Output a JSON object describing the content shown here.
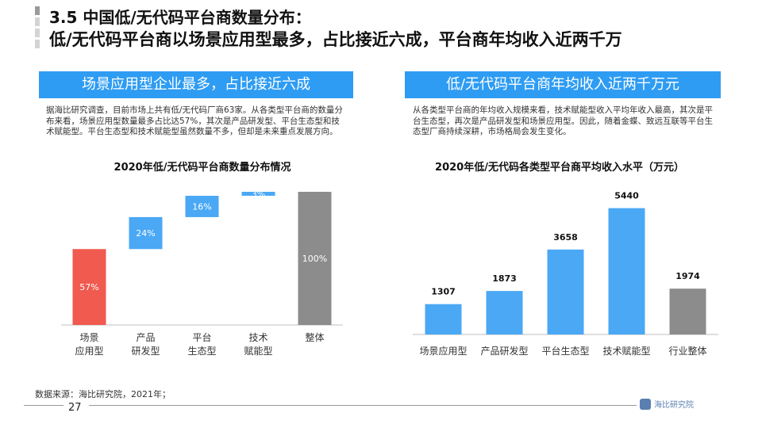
{
  "header": {
    "title_line1": "3.5 中国低/无代码平台商数量分布：",
    "title_line2": "低/无代码平台商以场景应用型最多，占比接近六成，平台商年均收入近两千万"
  },
  "left": {
    "banner": "场景应用型企业最多，占比接近六成",
    "paragraph": "据海比研究调查，目前市场上共有低/无代码厂商63家。从各类型平台商的数量分布来看，场景应用型数量最多占比达57%，其次是产品研发型、平台生态型和技术赋能型。平台生态型和技术赋能型虽然数量不多，但却是未来重点发展方向。"
  },
  "right": {
    "banner": "低/无代码平台商年均收入近两千万元",
    "paragraph": "从各类型平台商的年均收入规模来看，技术赋能型收入平均年收入最高，其次是平台生态型，再次是产品研发型和场景应用型。因此，随着金蝶、致远互联等平台生态型厂商持续深耕，市场格局会发生变化。"
  },
  "chart_data": [
    {
      "type": "bar",
      "subtype": "waterfall",
      "title": "2020年低/无代码平台商数量分布情况",
      "categories": [
        "场景\n应用型",
        "产品\n研发型",
        "平台\n生态型",
        "技术\n赋能型",
        "整体"
      ],
      "values": [
        57,
        24,
        16,
        3,
        100
      ],
      "labels": [
        "57%",
        "24%",
        "16%",
        "3%",
        "100%"
      ],
      "colors": [
        "#f05a4f",
        "#4aa8f5",
        "#4aa8f5",
        "#4aa8f5",
        "#8c8c8c"
      ],
      "ylim": [
        0,
        100
      ],
      "grid": false
    },
    {
      "type": "bar",
      "title": "2020年低/无代码各类型平台商平均收入水平（万元）",
      "categories": [
        "场景应用型",
        "产品研发型",
        "平台生态型",
        "技术赋能型",
        "行业整体"
      ],
      "values": [
        1307,
        1873,
        3658,
        5440,
        1974
      ],
      "colors": [
        "#4aa8f5",
        "#4aa8f5",
        "#4aa8f5",
        "#4aa8f5",
        "#8c8c8c"
      ],
      "ylim": [
        0,
        5700
      ],
      "grid": false
    }
  ],
  "footer": {
    "source": "数据来源：海比研究院，2021年；",
    "page": "27",
    "logo_text": "海比研究院"
  }
}
